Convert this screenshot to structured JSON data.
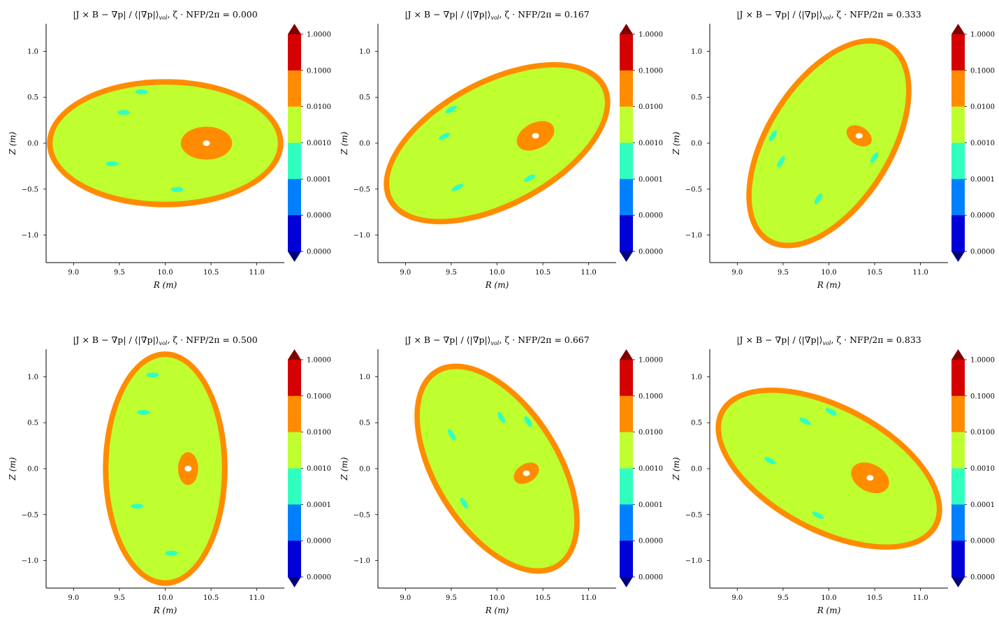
{
  "colorbar": {
    "tick_labels": [
      "1.0000",
      "0.1000",
      "0.0100",
      "0.0010",
      "0.0001",
      "0.0000",
      "0.0000"
    ],
    "band_colors": [
      "#d50000",
      "#ff8c00",
      "#bfff30",
      "#30ffc0",
      "#0080ff",
      "#0000d8"
    ],
    "over_color": "#7f0000",
    "under_color": "#00007f"
  },
  "chart_data": [
    {
      "type": "contour",
      "title_lhs": "|J × B − ∇p| / ⟨|∇p|⟩",
      "title_sub": "vol",
      "title_rhs": ", ζ · NFP/2π = 0.000",
      "xlabel": "R (m)",
      "ylabel": "Z (m)",
      "xlim": [
        8.7,
        11.3
      ],
      "ylim": [
        -1.3,
        1.3
      ],
      "xticks": [
        "9.0",
        "9.5",
        "10.0",
        "10.5",
        "11.0"
      ],
      "yticks": [
        "1.0",
        "0.5",
        "0.0",
        "−0.5",
        "−1.0"
      ],
      "xtick_values": [
        9.0,
        9.5,
        10.0,
        10.5,
        11.0
      ],
      "ytick_values": [
        1.0,
        0.5,
        0.0,
        -0.5,
        -1.0
      ],
      "boundary": {
        "center": [
          10.0,
          0.0
        ],
        "a": 1.29,
        "b": 0.7,
        "tilt_deg": 0
      },
      "hotspot": {
        "center": [
          10.45,
          0.0
        ],
        "rx": 0.28,
        "ry": 0.18
      }
    },
    {
      "type": "contour",
      "title_lhs": "|J × B − ∇p| / ⟨|∇p|⟩",
      "title_sub": "vol",
      "title_rhs": ", ζ · NFP/2π = 0.167",
      "xlabel": "R (m)",
      "ylabel": "Z (m)",
      "xlim": [
        8.7,
        11.3
      ],
      "ylim": [
        -1.3,
        1.3
      ],
      "xticks": [
        "9.0",
        "9.5",
        "10.0",
        "10.5",
        "11.0"
      ],
      "yticks": [
        "1.0",
        "0.5",
        "0.0",
        "−0.5",
        "−1.0"
      ],
      "xtick_values": [
        9.0,
        9.5,
        10.0,
        10.5,
        11.0
      ],
      "ytick_values": [
        1.0,
        0.5,
        0.0,
        -0.5,
        -1.0
      ],
      "boundary": {
        "center": [
          10.0,
          0.0
        ],
        "a": 1.35,
        "b": 0.7,
        "tilt_deg": 28
      },
      "hotspot": {
        "center": [
          10.42,
          0.08
        ],
        "rx": 0.22,
        "ry": 0.14
      }
    },
    {
      "type": "contour",
      "title_lhs": "|J × B − ∇p| / ⟨|∇p|⟩",
      "title_sub": "vol",
      "title_rhs": ", ζ · NFP/2π = 0.333",
      "xlabel": "R (m)",
      "ylabel": "Z (m)",
      "xlim": [
        8.7,
        11.3
      ],
      "ylim": [
        -1.3,
        1.3
      ],
      "xticks": [
        "9.0",
        "9.5",
        "10.0",
        "10.5",
        "11.0"
      ],
      "yticks": [
        "1.0",
        "0.5",
        "0.0",
        "−0.5",
        "−1.0"
      ],
      "xtick_values": [
        9.0,
        9.5,
        10.0,
        10.5,
        11.0
      ],
      "ytick_values": [
        1.0,
        0.5,
        0.0,
        -0.5,
        -1.0
      ],
      "boundary": {
        "center": [
          10.0,
          0.0
        ],
        "a": 1.28,
        "b": 0.7,
        "tilt_deg": 58
      },
      "hotspot": {
        "center": [
          10.33,
          0.08
        ],
        "rx": 0.1,
        "ry": 0.15
      }
    },
    {
      "type": "contour",
      "title_lhs": "|J × B − ∇p| / ⟨|∇p|⟩",
      "title_sub": "vol",
      "title_rhs": ", ζ · NFP/2π = 0.500",
      "xlabel": "R (m)",
      "ylabel": "Z (m)",
      "xlim": [
        8.7,
        11.3
      ],
      "ylim": [
        -1.3,
        1.3
      ],
      "xticks": [
        "9.0",
        "9.5",
        "10.0",
        "10.5",
        "11.0"
      ],
      "yticks": [
        "1.0",
        "0.5",
        "0.0",
        "−0.5",
        "−1.0"
      ],
      "xtick_values": [
        9.0,
        9.5,
        10.0,
        10.5,
        11.0
      ],
      "ytick_values": [
        1.0,
        0.5,
        0.0,
        -0.5,
        -1.0
      ],
      "boundary": {
        "center": [
          10.0,
          0.0
        ],
        "a": 0.68,
        "b": 1.28,
        "tilt_deg": 0
      },
      "hotspot": {
        "center": [
          10.25,
          0.0
        ],
        "rx": 0.11,
        "ry": 0.18
      }
    },
    {
      "type": "contour",
      "title_lhs": "|J × B − ∇p| / ⟨|∇p|⟩",
      "title_sub": "vol",
      "title_rhs": ", ζ · NFP/2π = 0.667",
      "xlabel": "R (m)",
      "ylabel": "Z (m)",
      "xlim": [
        8.7,
        11.3
      ],
      "ylim": [
        -1.3,
        1.3
      ],
      "xticks": [
        "9.0",
        "9.5",
        "10.0",
        "10.5",
        "11.0"
      ],
      "yticks": [
        "1.0",
        "0.5",
        "0.0",
        "−0.5",
        "−1.0"
      ],
      "xtick_values": [
        9.0,
        9.5,
        10.0,
        10.5,
        11.0
      ],
      "ytick_values": [
        1.0,
        0.5,
        0.0,
        -0.5,
        -1.0
      ],
      "boundary": {
        "center": [
          10.0,
          0.0
        ],
        "a": 1.28,
        "b": 0.7,
        "tilt_deg": -58
      },
      "hotspot": {
        "center": [
          10.32,
          -0.05
        ],
        "rx": 0.1,
        "ry": 0.15
      }
    },
    {
      "type": "contour",
      "title_lhs": "|J × B − ∇p| / ⟨|∇p|⟩",
      "title_sub": "vol",
      "title_rhs": ", ζ · NFP/2π = 0.833",
      "xlabel": "R (m)",
      "ylabel": "Z (m)",
      "xlim": [
        8.7,
        11.3
      ],
      "ylim": [
        -1.3,
        1.3
      ],
      "xticks": [
        "9.0",
        "9.5",
        "10.0",
        "10.5",
        "11.0"
      ],
      "yticks": [
        "1.0",
        "0.5",
        "0.0",
        "−0.5",
        "−1.0"
      ],
      "xtick_values": [
        9.0,
        9.5,
        10.0,
        10.5,
        11.0
      ],
      "ytick_values": [
        1.0,
        0.5,
        0.0,
        -0.5,
        -1.0
      ],
      "boundary": {
        "center": [
          10.0,
          0.0
        ],
        "a": 1.35,
        "b": 0.7,
        "tilt_deg": -28
      },
      "hotspot": {
        "center": [
          10.45,
          -0.1
        ],
        "rx": 0.22,
        "ry": 0.15
      }
    }
  ]
}
